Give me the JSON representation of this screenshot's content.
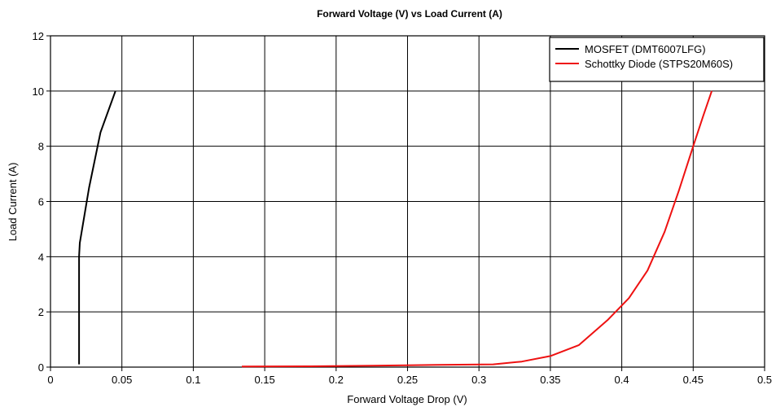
{
  "chart_data": {
    "type": "line",
    "title": "Forward Voltage (V) vs Load Current (A)",
    "xlabel": "Forward Voltage Drop (V)",
    "ylabel": "Load Current (A)",
    "xlim": [
      0,
      0.5
    ],
    "ylim": [
      0,
      12
    ],
    "xticks": [
      0,
      0.05,
      0.1,
      0.15,
      0.2,
      0.25,
      0.3,
      0.35,
      0.4,
      0.45,
      0.5
    ],
    "xtick_labels": [
      "0",
      "0.05",
      "0.1",
      "0.15",
      "0.2",
      "0.25",
      "0.3",
      "0.35",
      "0.4",
      "0.45",
      "0.5"
    ],
    "yticks": [
      0,
      2,
      4,
      6,
      8,
      10,
      12
    ],
    "ytick_labels": [
      "0",
      "2",
      "4",
      "6",
      "8",
      "10",
      "12"
    ],
    "grid": true,
    "legend_position": "top-right",
    "series": [
      {
        "name": "MOSFET (DMT6007LFG)",
        "color": "#000000",
        "x": [
          0.02,
          0.02,
          0.0205,
          0.027,
          0.035,
          0.0455
        ],
        "y": [
          0.1,
          4.0,
          4.5,
          6.5,
          8.5,
          10.0
        ]
      },
      {
        "name": "Schottky Diode (STPS20M60S)",
        "color": "#ee1111",
        "x": [
          0.134,
          0.18,
          0.225,
          0.27,
          0.31,
          0.33,
          0.35,
          0.37,
          0.39,
          0.405,
          0.418,
          0.43,
          0.44,
          0.45,
          0.457,
          0.463
        ],
        "y": [
          0.02,
          0.03,
          0.05,
          0.08,
          0.1,
          0.2,
          0.4,
          0.8,
          1.7,
          2.5,
          3.5,
          4.9,
          6.4,
          8.0,
          9.1,
          10.0
        ]
      }
    ]
  }
}
